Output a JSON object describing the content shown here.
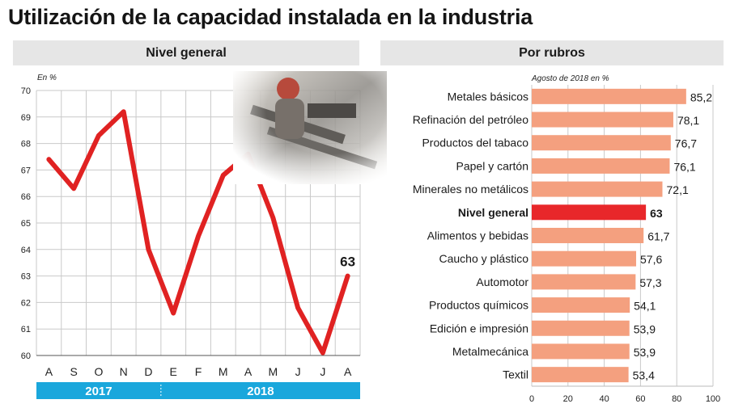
{
  "title": "Utilización de la capacidad instalada en la industria",
  "left_panel": {
    "header": "Nivel general",
    "unit": "En %"
  },
  "right_panel": {
    "header": "Por rubros",
    "unit": "Agosto de 2018 en %"
  },
  "chart_data": [
    {
      "type": "line",
      "title": "Nivel general",
      "ylabel": "En %",
      "ylim": [
        60,
        70
      ],
      "yticks": [
        "70",
        "69",
        "68",
        "67",
        "66",
        "65",
        "64",
        "63",
        "62",
        "61",
        "60"
      ],
      "categories": [
        "A",
        "S",
        "O",
        "N",
        "D",
        "E",
        "F",
        "M",
        "A",
        "M",
        "J",
        "J",
        "A"
      ],
      "year_labels": [
        "2017",
        "2018"
      ],
      "values": [
        67.4,
        66.3,
        68.3,
        69.2,
        64.0,
        61.6,
        64.5,
        66.8,
        67.6,
        65.2,
        61.8,
        60.1,
        63.0
      ],
      "end_label": "63",
      "line_color": "#e02222",
      "year_band_color": "#1aa7dc",
      "grid": true
    },
    {
      "type": "bar",
      "orientation": "horizontal",
      "title": "Por rubros",
      "subtitle": "Agosto de 2018 en %",
      "xlim": [
        0,
        100
      ],
      "xticks": [
        "0",
        "20",
        "40",
        "60",
        "80",
        "100"
      ],
      "categories": [
        "Metales básicos",
        "Refinación del petróleo",
        "Productos del tabaco",
        "Papel y cartón",
        "Minerales no metálicos",
        "Nivel general",
        "Alimentos y bebidas",
        "Caucho y plástico",
        "Automotor",
        "Productos químicos",
        "Edición e impresión",
        "Metalmecánica",
        "Textil"
      ],
      "values": [
        85.2,
        78.1,
        76.7,
        76.1,
        72.1,
        63,
        61.7,
        57.6,
        57.3,
        54.1,
        53.9,
        53.9,
        53.4
      ],
      "value_labels": [
        "85,2",
        "78,1",
        "76,7",
        "76,1",
        "72,1",
        "63",
        "61,7",
        "57,6",
        "57,3",
        "54,1",
        "53,9",
        "53,9",
        "53,4"
      ],
      "highlight": "Nivel general",
      "bar_color": "#f4a07f",
      "highlight_color": "#e8272a",
      "grid": true
    }
  ]
}
